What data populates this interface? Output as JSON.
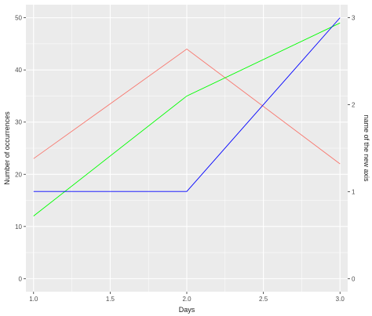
{
  "chart_data": {
    "type": "line",
    "xlabel": "Days",
    "ylabel": "Number of occurrences",
    "y2label": "name of the new axis",
    "xlim": [
      0.95,
      3.05
    ],
    "ylim": [
      -2.5,
      52.5
    ],
    "y2lim": [
      -0.15,
      3.15
    ],
    "x_ticks": [
      1.0,
      1.5,
      2.0,
      2.5,
      3.0
    ],
    "x_tick_labels": [
      "1.0",
      "1.5",
      "2.0",
      "2.5",
      "3.0"
    ],
    "y_ticks": [
      0,
      10,
      20,
      30,
      40,
      50
    ],
    "y_tick_labels": [
      "0",
      "10",
      "20",
      "30",
      "40",
      "50"
    ],
    "y2_ticks": [
      0,
      1,
      2,
      3
    ],
    "y2_tick_labels": [
      "0",
      "1",
      "2",
      "3"
    ],
    "grid": true,
    "legend": "none",
    "background": "#ebebeb",
    "gridline_color": "#ffffff",
    "series": [
      {
        "color": "#f8766d",
        "x": [
          1,
          2,
          3
        ],
        "y": [
          23,
          44,
          22
        ]
      },
      {
        "color": "#00ff00",
        "x": [
          1,
          2,
          3
        ],
        "y": [
          12,
          35,
          49
        ]
      },
      {
        "color": "#0000ff",
        "x": [
          1,
          2,
          3
        ],
        "y": [
          16.7,
          16.7,
          50
        ]
      }
    ]
  }
}
